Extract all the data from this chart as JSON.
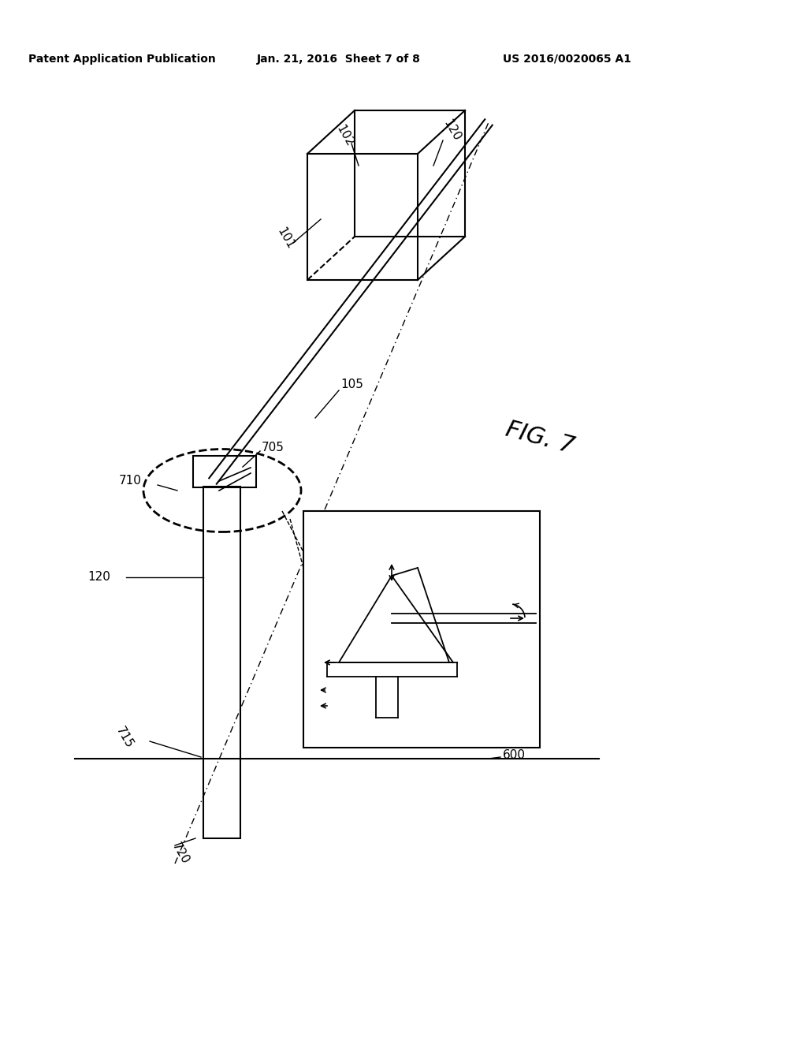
{
  "bg_color": "#ffffff",
  "line_color": "#000000",
  "header_left": "Patent Application Publication",
  "header_mid": "Jan. 21, 2016  Sheet 7 of 8",
  "header_right": "US 2016/0020065 A1"
}
